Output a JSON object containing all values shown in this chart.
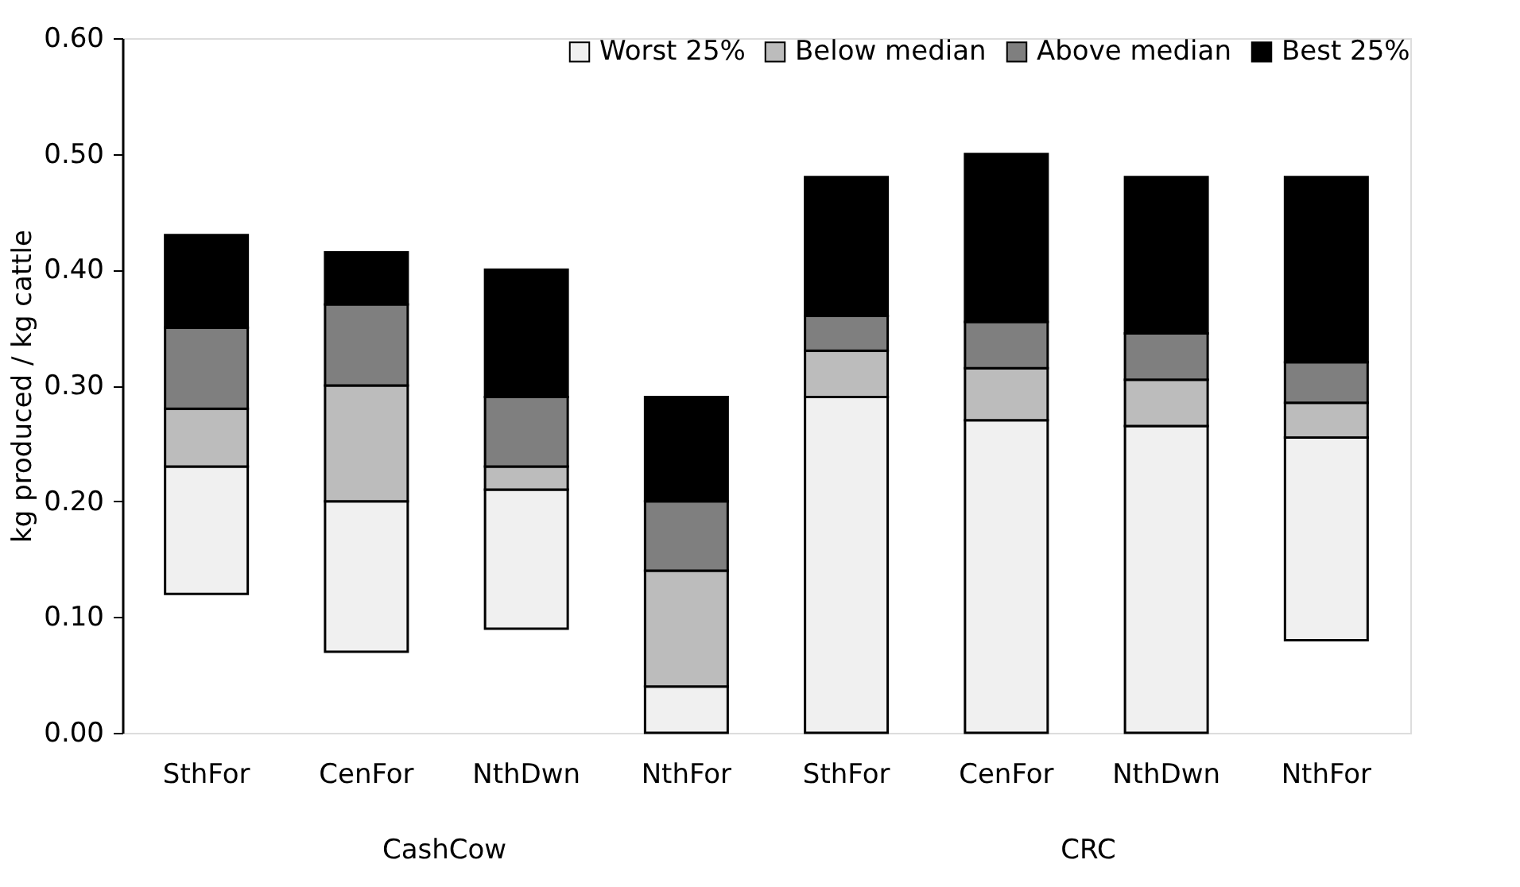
{
  "chart_data": {
    "type": "bar",
    "ylabel": "kg produced / kg cattle",
    "categories": [
      "SthFor",
      "CenFor",
      "NthDwn",
      "NthFor",
      "SthFor",
      "CenFor",
      "NthDwn",
      "NthFor"
    ],
    "series": [
      {
        "name": "Worst 25%",
        "color": "#f0f0f0",
        "base": [
          0.12,
          0.07,
          0.09,
          0,
          0,
          0,
          0,
          0.08
        ],
        "values": [
          0.11,
          0.13,
          0.12,
          0.04,
          0.29,
          0.27,
          0.265,
          0.175
        ]
      },
      {
        "name": "Below median",
        "color": "#bcbcbc",
        "base": [
          0.23,
          0.2,
          0.21,
          0.04,
          0.29,
          0.27,
          0.265,
          0.255
        ],
        "values": [
          0.05,
          0.1,
          0.02,
          0.1,
          0.04,
          0.045,
          0.04,
          0.03
        ]
      },
      {
        "name": "Above median",
        "color": "#7f7f7f",
        "base": [
          0.28,
          0.3,
          0.23,
          0.14,
          0.33,
          0.315,
          0.305,
          0.285
        ],
        "values": [
          0.07,
          0.07,
          0.06,
          0.06,
          0.03,
          0.04,
          0.04,
          0.035
        ]
      },
      {
        "name": "Best 25%",
        "color": "#000000",
        "base": [
          0.35,
          0.37,
          0.29,
          0.2,
          0.36,
          0.355,
          0.345,
          0.32
        ],
        "values": [
          0.08,
          0.045,
          0.11,
          0.09,
          0.12,
          0.145,
          0.135,
          0.16
        ]
      }
    ],
    "ylim": [
      0,
      0.6
    ],
    "yticks": [
      {
        "value": 0,
        "label": "0.00"
      },
      {
        "value": 0.1,
        "label": "0.10"
      },
      {
        "value": 0.2,
        "label": "0.20"
      },
      {
        "value": 0.3,
        "label": "0.30"
      },
      {
        "value": 0.4,
        "label": "0.40"
      },
      {
        "value": 0.5,
        "label": "0.50"
      },
      {
        "value": 0.6,
        "label": "0.60"
      }
    ],
    "grid": false,
    "legend": "top right",
    "annotations": [
      "CashCow",
      "CRC"
    ]
  }
}
